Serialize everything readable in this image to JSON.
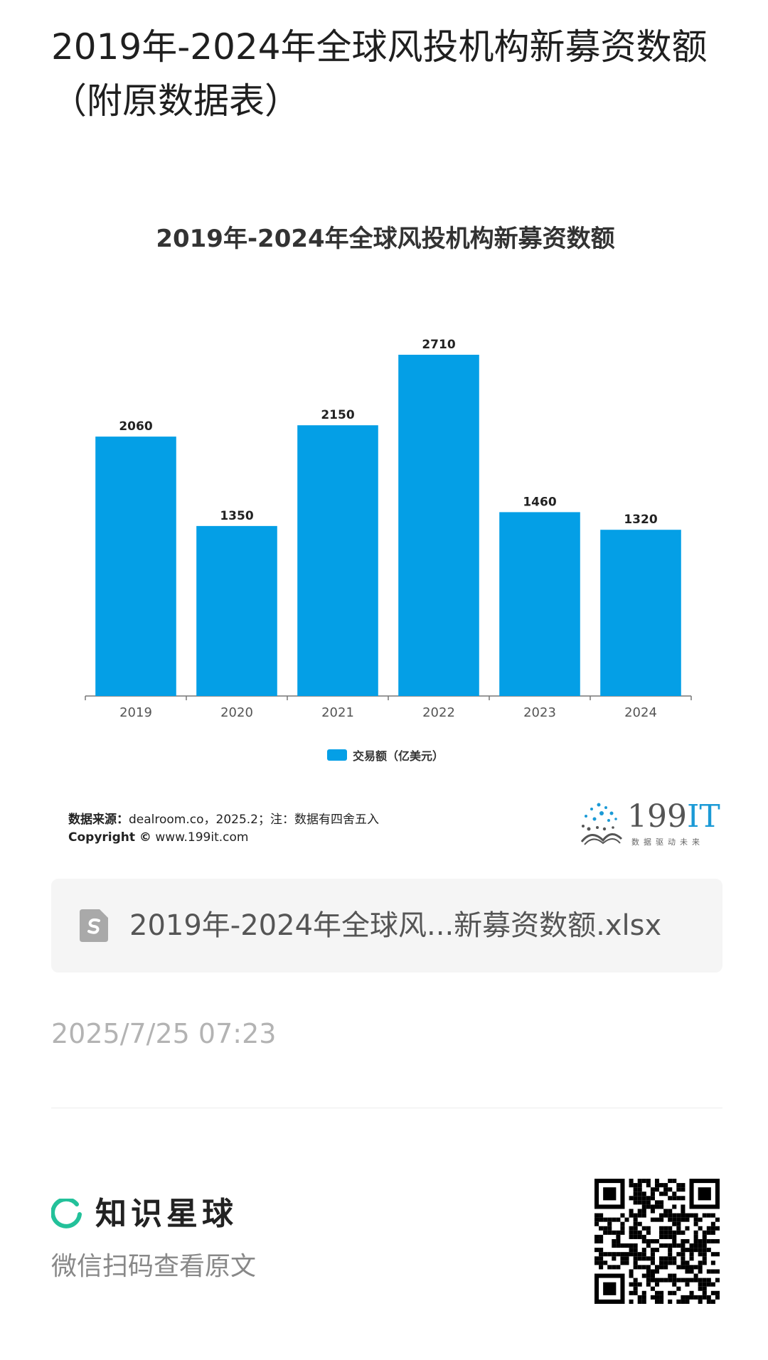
{
  "page_title": "2019年-2024年全球风投机构新募资数额（附原数据表）",
  "chart_title": "2019年-2024年全球风投机构新募资数额",
  "chart_data": {
    "type": "bar",
    "title": "2019年-2024年全球风投机构新募资数额",
    "categories": [
      "2019",
      "2020",
      "2021",
      "2022",
      "2023",
      "2024"
    ],
    "series": [
      {
        "name": "交易额（亿美元）",
        "values": [
          2060,
          1350,
          2150,
          2710,
          1460,
          1320
        ]
      }
    ],
    "ylim": [
      0,
      2710
    ],
    "grid": false,
    "legend": "bottom-center",
    "data_labels": true
  },
  "legend_label": "交易额（亿美元）",
  "source": {
    "label": "数据来源：",
    "text": "dealroom.co，2025.2；注：数据有四舍五入",
    "copyright_label": "Copyright ©",
    "copyright_url": "www.199it.com"
  },
  "logo": {
    "number": "199",
    "suffix": "IT",
    "tagline": "数据驱动未来"
  },
  "file": {
    "name": "2019年-2024年全球风...新募资数额.xlsx",
    "icon": "spreadsheet-file-icon"
  },
  "timestamp": "2025/7/25 07:23",
  "brand": {
    "name": "知识星球",
    "icon": "planet-ring-icon"
  },
  "scan_hint": "微信扫码查看原文",
  "colors": {
    "bar": "#049fe6",
    "brand_green": "#23c19a",
    "timestamp": "#b3b3b3"
  }
}
